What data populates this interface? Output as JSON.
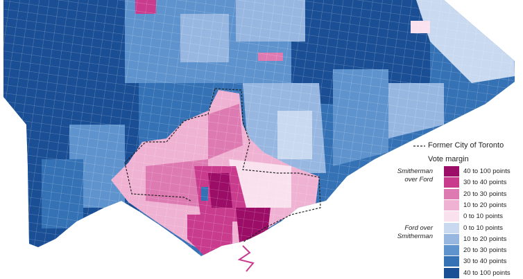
{
  "map": {
    "boundary_label": "Former City of Toronto",
    "legend_title": "Vote margin",
    "groups": [
      {
        "label": "Smitherman over Ford",
        "items": [
          {
            "label": "40 to 100 points",
            "color": "#9b0d66"
          },
          {
            "label": "30 to 40 points",
            "color": "#c93b8d"
          },
          {
            "label": "20 to 30 points",
            "color": "#de7ab2"
          },
          {
            "label": "10 to 20 points",
            "color": "#efb2d2"
          },
          {
            "label": "0 to 10 points",
            "color": "#f9e1ee"
          }
        ]
      },
      {
        "label": "Ford over Smitherman",
        "items": [
          {
            "label": "0 to 10 points",
            "color": "#c9d9ef"
          },
          {
            "label": "10 to 20 points",
            "color": "#97b7e1"
          },
          {
            "label": "20 to 30 points",
            "color": "#5f93cd"
          },
          {
            "label": "30 to 40 points",
            "color": "#3571b5"
          },
          {
            "label": "40 to 100 points",
            "color": "#1b4f95"
          }
        ]
      }
    ]
  }
}
